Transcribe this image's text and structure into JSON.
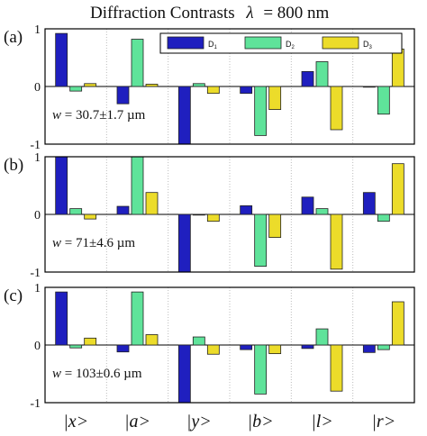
{
  "title_prefix": "Diffraction Contrasts",
  "title_lambda": "λ",
  "title_suffix": "= 800 nm",
  "chart_data": {
    "type": "bar",
    "categories": [
      "|x>",
      "|a>",
      "|y>",
      "|b>",
      "|l>",
      "|r>"
    ],
    "legend": {
      "placement": "top-right",
      "entries": [
        {
          "base": "D",
          "sub": "1"
        },
        {
          "base": "D",
          "sub": "2"
        },
        {
          "base": "D",
          "sub": "3"
        }
      ]
    },
    "ylim": [
      -1,
      1
    ],
    "yticks": [
      "1",
      "0",
      "-1"
    ],
    "grid": "vertical dotted",
    "colors": [
      "#1f1fbf",
      "#5fe39a",
      "#ecdc2a"
    ],
    "panels": [
      {
        "label": "(a)",
        "annotation": {
          "symbol": "w",
          "text": " = 30.7±1.7 µm"
        },
        "series": [
          {
            "name": "D1",
            "values": [
              0.92,
              -0.3,
              -1.0,
              -0.12,
              0.26,
              0.0
            ]
          },
          {
            "name": "D2",
            "values": [
              -0.08,
              0.82,
              0.05,
              -0.85,
              0.43,
              -0.48
            ]
          },
          {
            "name": "D3",
            "values": [
              0.05,
              0.04,
              -0.12,
              -0.4,
              -0.75,
              0.65
            ]
          }
        ]
      },
      {
        "label": "(b)",
        "annotation": {
          "symbol": "w",
          "text": " = 71±4.6 µm"
        },
        "series": [
          {
            "name": "D1",
            "values": [
              1.0,
              0.14,
              -1.0,
              0.15,
              0.3,
              0.38
            ]
          },
          {
            "name": "D2",
            "values": [
              0.1,
              1.0,
              0.0,
              -0.9,
              0.1,
              -0.12
            ]
          },
          {
            "name": "D3",
            "values": [
              -0.08,
              0.38,
              -0.12,
              -0.4,
              -0.95,
              0.88
            ]
          }
        ]
      },
      {
        "label": "(c)",
        "annotation": {
          "symbol": "w",
          "text": " = 103±0.6 µm"
        },
        "series": [
          {
            "name": "D1",
            "values": [
              0.92,
              -0.12,
              -1.0,
              -0.08,
              -0.06,
              -0.13
            ]
          },
          {
            "name": "D2",
            "values": [
              -0.05,
              0.92,
              0.14,
              -0.85,
              0.28,
              -0.08
            ]
          },
          {
            "name": "D3",
            "values": [
              0.12,
              0.18,
              -0.16,
              -0.15,
              -0.8,
              0.75
            ]
          }
        ]
      }
    ]
  }
}
